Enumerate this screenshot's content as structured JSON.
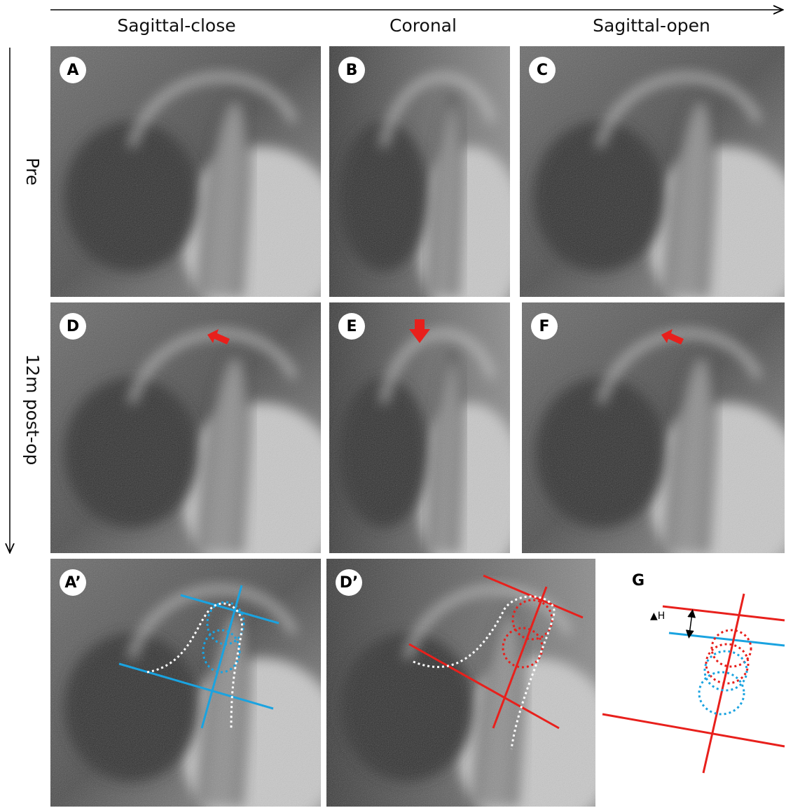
{
  "columns": [
    "Sagittal-close",
    "Coronal",
    "Sagittal-open"
  ],
  "rows": [
    "Pre",
    "12m post-op"
  ],
  "panels": [
    "A",
    "B",
    "C",
    "D",
    "E",
    "F",
    "A’",
    "D’"
  ],
  "diagram": {
    "label": "G",
    "measure": "▲H"
  }
}
